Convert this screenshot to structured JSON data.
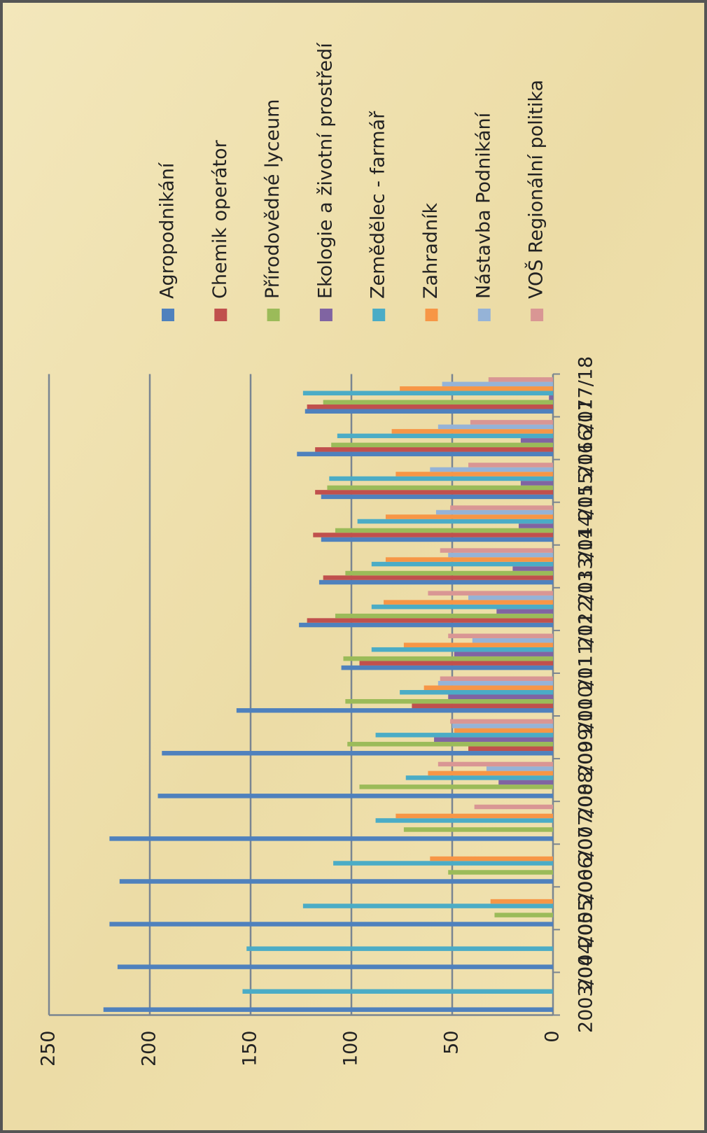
{
  "chart_data": {
    "type": "bar",
    "categories": [
      "2003/04",
      "2004/05",
      "2005/06",
      "2006/07",
      "2007/08",
      "2008/09",
      "2009/10",
      "2010/11",
      "2011/12",
      "2012/13",
      "2013/14",
      "2014/15",
      "2015/16",
      "2016/17",
      "2017/18"
    ],
    "series": [
      {
        "name": "Agropodnikání",
        "color": "#4f81bd",
        "values": [
          223,
          216,
          220,
          215,
          220,
          196,
          194,
          157,
          105,
          126,
          116,
          115,
          115,
          127,
          123
        ]
      },
      {
        "name": "Chemik operátor",
        "color": "#c0504d",
        "values": [
          0,
          0,
          0,
          0,
          0,
          0,
          42,
          70,
          96,
          122,
          114,
          119,
          118,
          118,
          122
        ]
      },
      {
        "name": "Přírodovědné lyceum",
        "color": "#9bbb59",
        "values": [
          0,
          0,
          29,
          52,
          74,
          96,
          102,
          103,
          104,
          108,
          103,
          108,
          112,
          110,
          114
        ]
      },
      {
        "name": "Ekologie a životní prostředí",
        "color": "#8064a2",
        "values": [
          0,
          0,
          0,
          0,
          0,
          27,
          59,
          52,
          49,
          28,
          20,
          17,
          16,
          16,
          2
        ]
      },
      {
        "name": "Zemědělec - farmář",
        "color": "#4bacc6",
        "values": [
          154,
          152,
          124,
          109,
          88,
          73,
          88,
          76,
          90,
          90,
          90,
          97,
          111,
          107,
          124
        ]
      },
      {
        "name": "Zahradník",
        "color": "#f79646",
        "values": [
          0,
          0,
          31,
          61,
          78,
          62,
          49,
          64,
          74,
          84,
          83,
          83,
          78,
          80,
          76
        ]
      },
      {
        "name": "Nástavba Podnikání",
        "color": "#95b3d7",
        "values": [
          0,
          0,
          0,
          0,
          0,
          33,
          50,
          57,
          40,
          42,
          52,
          58,
          61,
          57,
          55
        ]
      },
      {
        "name": "VOŠ Regionální politika",
        "color": "#d99694",
        "values": [
          0,
          0,
          0,
          0,
          39,
          57,
          51,
          56,
          52,
          62,
          56,
          51,
          42,
          41,
          32
        ]
      }
    ],
    "ylim": [
      0,
      250
    ],
    "yticks": [
      0,
      50,
      100,
      150,
      200,
      250
    ],
    "grid": true,
    "legend": "right"
  }
}
